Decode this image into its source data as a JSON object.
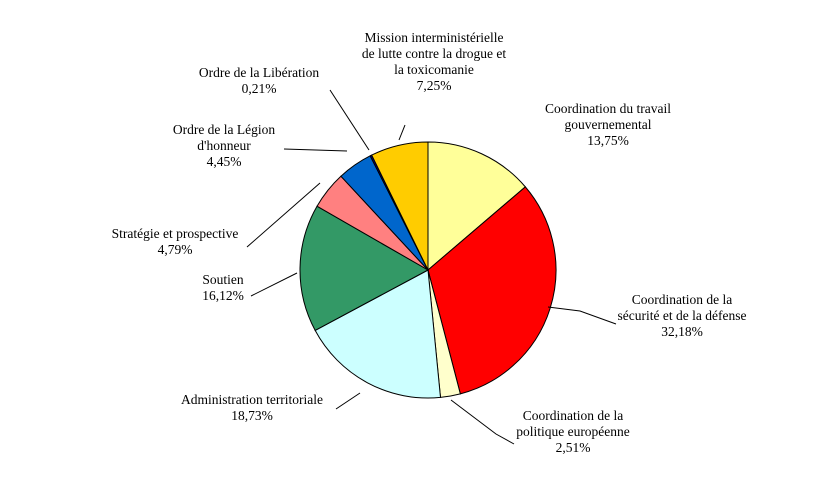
{
  "chart_data": {
    "type": "pie",
    "title": "",
    "start_angle_deg": 90,
    "direction": "clockwise",
    "slices": [
      {
        "label_lines": [
          "Coordination du travail",
          "gouvernemental"
        ],
        "value_label": "13,75%",
        "value": 13.75,
        "color": "#ffff99"
      },
      {
        "label_lines": [
          "Coordination de la",
          "sécurité et de la défense"
        ],
        "value_label": "32,18%",
        "value": 32.18,
        "color": "#ff0000"
      },
      {
        "label_lines": [
          "Coordination de la",
          "politique européenne"
        ],
        "value_label": "2,51%",
        "value": 2.51,
        "color": "#ffffcc"
      },
      {
        "label_lines": [
          "Administration territoriale"
        ],
        "value_label": "18,73%",
        "value": 18.73,
        "color": "#ccffff"
      },
      {
        "label_lines": [
          "Soutien"
        ],
        "value_label": "16,12%",
        "value": 16.12,
        "color": "#339966"
      },
      {
        "label_lines": [
          "Stratégie et prospective"
        ],
        "value_label": "4,79%",
        "value": 4.79,
        "color": "#ff8080"
      },
      {
        "label_lines": [
          "Ordre de la Légion",
          "d'honneur"
        ],
        "value_label": "4,45%",
        "value": 4.45,
        "color": "#0066cc"
      },
      {
        "label_lines": [
          "Ordre de la Libération"
        ],
        "value_label": "0,21%",
        "value": 0.21,
        "color": "#000080"
      },
      {
        "label_lines": [
          "Mission interministérielle",
          "de lutte contre la drogue et",
          "la toxicomanie"
        ],
        "value_label": "7,25%",
        "value": 7.25,
        "color": "#ffcc00"
      }
    ]
  }
}
